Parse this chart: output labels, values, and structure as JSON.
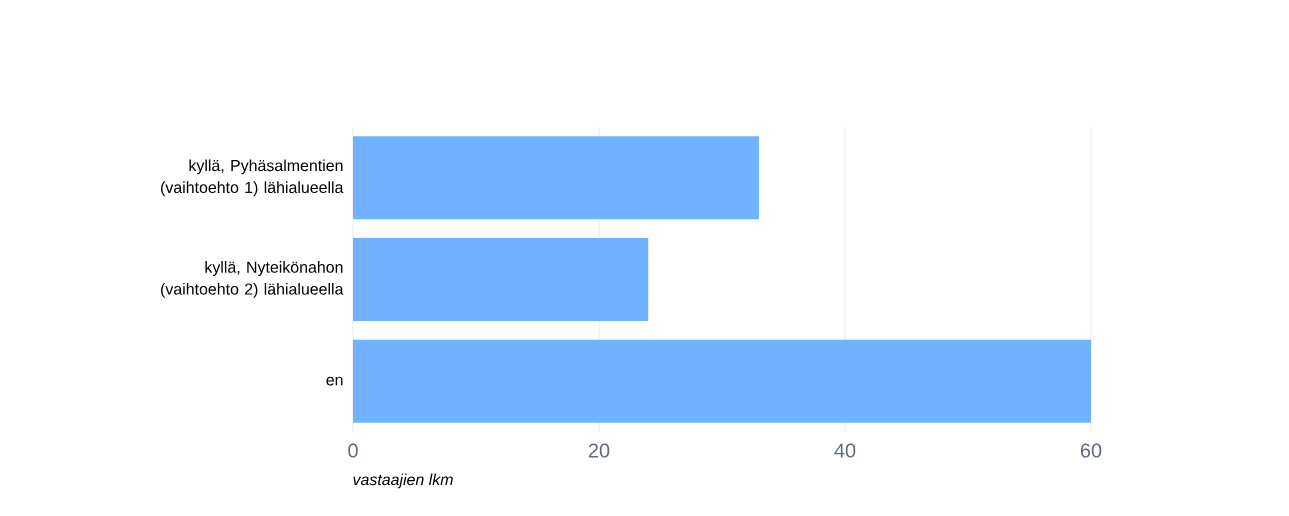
{
  "chart_data": {
    "type": "bar",
    "orientation": "horizontal",
    "xlabel": "vastaajien lkm",
    "categories": [
      "kyllä, Pyhäsalmentien (vaihtoehto 1) lähialueella",
      "kyllä, Nyteikönahon (vaihtoehto 2) lähialueella",
      "en"
    ],
    "values": [
      33,
      24,
      60
    ],
    "color": "#70b2ff",
    "xlim": [
      0,
      60
    ],
    "xticks": [
      0,
      20,
      40,
      60
    ],
    "grid": "x"
  }
}
